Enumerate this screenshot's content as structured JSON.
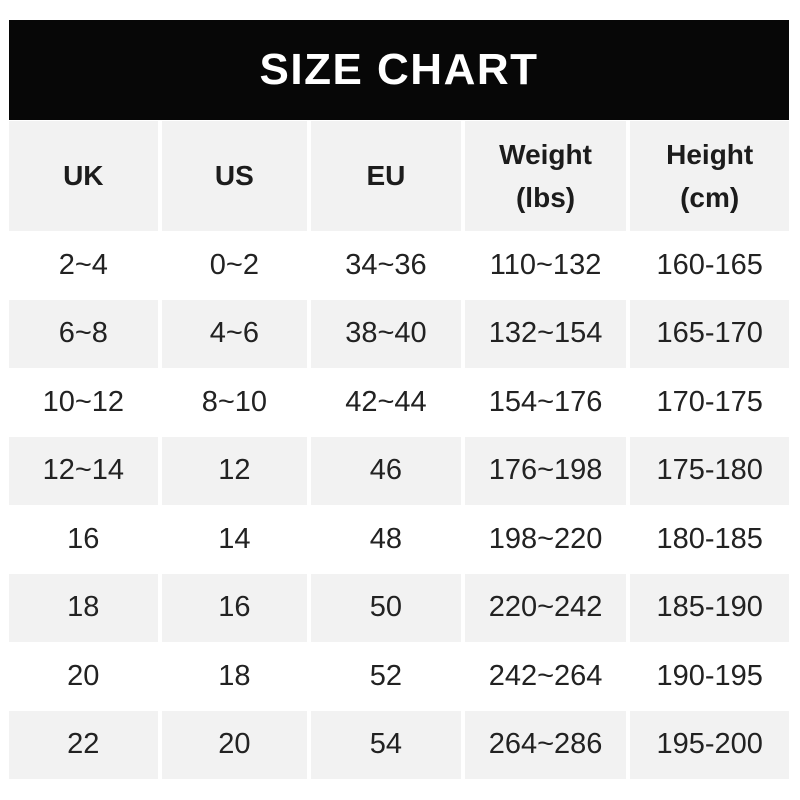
{
  "banner": {
    "title": "SIZE CHART"
  },
  "colors": {
    "banner_bg": "#070707",
    "banner_text": "#ffffff",
    "stripe_bg": "#f2f2f2",
    "row_bg": "#ffffff",
    "text": "#222222",
    "header_text": "#1c1c1c"
  },
  "table": {
    "headers": [
      "UK",
      "US",
      "EU",
      "Weight\n(lbs)",
      "Height\n(cm)"
    ],
    "rows": [
      [
        "2~4",
        "0~2",
        "34~36",
        "110~132",
        "160-165"
      ],
      [
        "6~8",
        "4~6",
        "38~40",
        "132~154",
        "165-170"
      ],
      [
        "10~12",
        "8~10",
        "42~44",
        "154~176",
        "170-175"
      ],
      [
        "12~14",
        "12",
        "46",
        "176~198",
        "175-180"
      ],
      [
        "16",
        "14",
        "48",
        "198~220",
        "180-185"
      ],
      [
        "18",
        "16",
        "50",
        "220~242",
        "185-190"
      ],
      [
        "20",
        "18",
        "52",
        "242~264",
        "190-195"
      ],
      [
        "22",
        "20",
        "54",
        "264~286",
        "195-200"
      ]
    ]
  },
  "chart_data": {
    "type": "table",
    "title": "SIZE CHART",
    "columns": [
      "UK",
      "US",
      "EU",
      "Weight (lbs)",
      "Height (cm)"
    ],
    "rows": [
      [
        "2~4",
        "0~2",
        "34~36",
        "110~132",
        "160-165"
      ],
      [
        "6~8",
        "4~6",
        "38~40",
        "132~154",
        "165-170"
      ],
      [
        "10~12",
        "8~10",
        "42~44",
        "154~176",
        "170-175"
      ],
      [
        "12~14",
        "12",
        "46",
        "176~198",
        "175-180"
      ],
      [
        "16",
        "14",
        "48",
        "198~220",
        "180-185"
      ],
      [
        "18",
        "16",
        "50",
        "220~242",
        "185-190"
      ],
      [
        "20",
        "18",
        "52",
        "242~264",
        "190-195"
      ],
      [
        "22",
        "20",
        "54",
        "264~286",
        "195-200"
      ]
    ]
  }
}
